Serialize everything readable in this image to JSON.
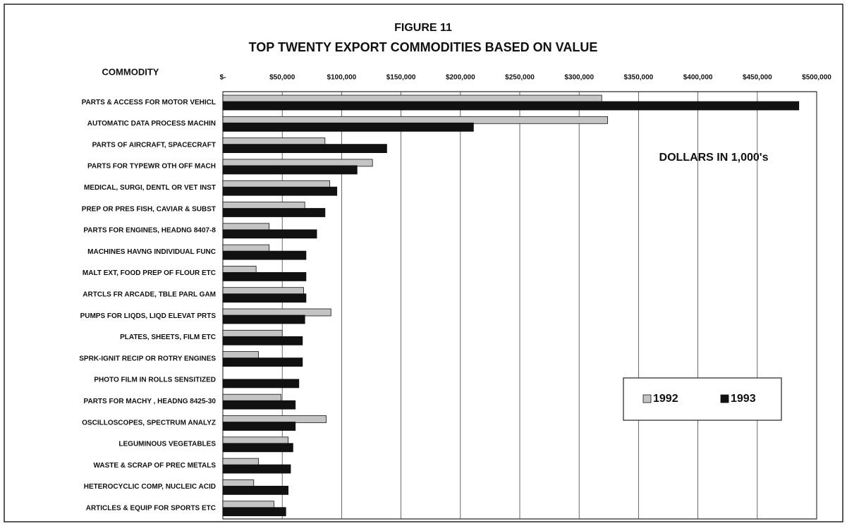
{
  "chart_data": {
    "type": "hbar",
    "title": "FIGURE 11",
    "subtitle": "TOP TWENTY  EXPORT COMMODITIES BASED ON VALUE",
    "y_label": "COMMODITY",
    "annotation": "DOLLARS IN 1,000's",
    "categories": [
      "PARTS & ACCESS FOR MOTOR VEHICL",
      "AUTOMATIC DATA PROCESS MACHIN",
      "PARTS OF  AIRCRAFT, SPACECRAFT",
      "PARTS  FOR TYPEWR   OTH OFF MACH",
      "MEDICAL, SURGI, DENTL OR VET INST",
      "PREP OR PRES FISH, CAVIAR & SUBST",
      "PARTS FOR ENGINES, HEADNG 8407-8",
      "MACHINES  HAVNG INDIVIDUAL FUNC",
      "MALT EXT, FOOD PREP OF FLOUR ETC",
      "ARTCLS FR ARCADE, TBLE  PARL GAM",
      "PUMPS FOR LIQDS, LIQD ELEVAT PRTS",
      "PLATES, SHEETS, FILM ETC",
      "SPRK-IGNIT RECIP OR ROTRY ENGINES",
      "PHOTO FILM IN ROLLS SENSITIZED",
      "PARTS FOR MACHY , HEADNG 8425-30",
      "OSCILLOSCOPES, SPECTRUM ANALYZ",
      "LEGUMINOUS VEGETABLES",
      "WASTE & SCRAP OF PREC METALS",
      "HETEROCYCLIC COMP, NUCLEIC ACID",
      "ARTICLES & EQUIP FOR SPORTS ETC"
    ],
    "series": [
      {
        "name": "1992",
        "color": "#c4c4c4",
        "values": [
          319000,
          324000,
          86000,
          126000,
          90000,
          69000,
          39000,
          39000,
          28000,
          68000,
          91000,
          50000,
          30000,
          null,
          49000,
          87000,
          55000,
          30000,
          26000,
          43000
        ]
      },
      {
        "name": "1993",
        "color": "#111111",
        "values": [
          485000,
          211000,
          138000,
          113000,
          96000,
          86000,
          79000,
          70000,
          70000,
          70000,
          69000,
          67000,
          67000,
          64000,
          61000,
          61000,
          59000,
          57000,
          55000,
          53000
        ]
      }
    ],
    "xlim": [
      0,
      500000
    ],
    "xticks": [
      {
        "value": 0,
        "label": "$-"
      },
      {
        "value": 50000,
        "label": "$50,000"
      },
      {
        "value": 100000,
        "label": "$100,000"
      },
      {
        "value": 150000,
        "label": "$150,000"
      },
      {
        "value": 200000,
        "label": "$200,000"
      },
      {
        "value": 250000,
        "label": "$250,000"
      },
      {
        "value": 300000,
        "label": "$300,000"
      },
      {
        "value": 350000,
        "label": "$350,000"
      },
      {
        "value": 400000,
        "label": "$400,000"
      },
      {
        "value": 450000,
        "label": "$450,000"
      },
      {
        "value": 500000,
        "label": "$500,000"
      }
    ],
    "grid": true
  }
}
